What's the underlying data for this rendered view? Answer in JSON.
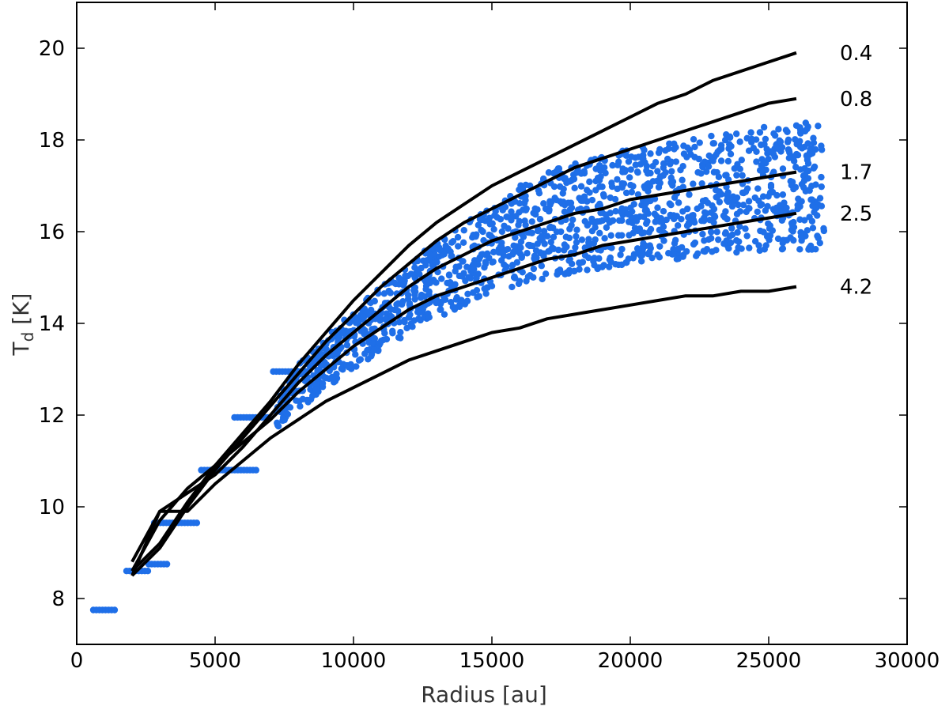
{
  "chart_data": {
    "type": "scatter",
    "xlabel": "Radius [au]",
    "ylabel_main": "T",
    "ylabel_sub": "d",
    "ylabel_unit": " [K]",
    "xlim": [
      0,
      30000
    ],
    "ylim": [
      7,
      21
    ],
    "xticks": [
      0,
      5000,
      10000,
      15000,
      20000,
      25000,
      30000
    ],
    "yticks": [
      8,
      10,
      12,
      14,
      16,
      18,
      20
    ],
    "grid": false,
    "scatter_color": "#1f6fe8",
    "curve_color": "#000000",
    "scatter_bands": [
      [
        [
          600,
          7.75
        ],
        [
          1400,
          7.75
        ],
        [
          1800,
          8.6
        ],
        [
          2600,
          8.6
        ],
        [
          2600,
          8.75
        ],
        [
          3300,
          8.75
        ],
        [
          2800,
          9.65
        ],
        [
          4400,
          9.65
        ],
        [
          4500,
          10.8
        ],
        [
          6500,
          10.8
        ],
        [
          5700,
          11.95
        ],
        [
          7000,
          11.95
        ],
        [
          7100,
          12.95
        ],
        [
          8300,
          12.95
        ]
      ],
      [
        [
          2000,
          8.6
        ],
        [
          3000,
          9.2
        ],
        [
          4000,
          10.1
        ],
        [
          5000,
          10.9
        ],
        [
          6000,
          11.7
        ],
        [
          7000,
          12.4
        ],
        [
          8000,
          13.1
        ],
        [
          9000,
          13.7
        ],
        [
          10000,
          14.3
        ],
        [
          11000,
          14.8
        ],
        [
          12000,
          15.3
        ],
        [
          13000,
          15.8
        ],
        [
          14000,
          16.2
        ],
        [
          15000,
          16.6
        ],
        [
          16000,
          17.0
        ],
        [
          17000,
          17.3
        ],
        [
          18000,
          17.5
        ],
        [
          19000,
          17.7
        ],
        [
          20000,
          17.8
        ],
        [
          21000,
          17.9
        ],
        [
          22000,
          18.0
        ],
        [
          23000,
          18.1
        ],
        [
          24000,
          18.2
        ],
        [
          25000,
          18.3
        ],
        [
          26000,
          18.4
        ],
        [
          27000,
          18.4
        ]
      ],
      [
        [
          7000,
          11.6
        ],
        [
          8000,
          12.1
        ],
        [
          9000,
          12.6
        ],
        [
          10000,
          13.0
        ],
        [
          11000,
          13.4
        ],
        [
          12000,
          13.8
        ],
        [
          13000,
          14.1
        ],
        [
          14000,
          14.4
        ],
        [
          15000,
          14.6
        ],
        [
          16000,
          14.8
        ],
        [
          17000,
          15.0
        ],
        [
          18000,
          15.1
        ],
        [
          19000,
          15.2
        ],
        [
          20000,
          15.3
        ],
        [
          21000,
          15.4
        ],
        [
          22000,
          15.4
        ],
        [
          23000,
          15.5
        ],
        [
          24000,
          15.5
        ],
        [
          25000,
          15.6
        ],
        [
          26000,
          15.6
        ],
        [
          27000,
          15.6
        ]
      ]
    ],
    "series": [
      {
        "label": "0.4",
        "x": [
          2000,
          3000,
          4000,
          5000,
          6000,
          7000,
          8000,
          9000,
          10000,
          11000,
          12000,
          13000,
          14000,
          15000,
          16000,
          17000,
          18000,
          19000,
          20000,
          21000,
          22000,
          23000,
          24000,
          25000,
          26000
        ],
        "y": [
          8.6,
          9.2,
          10.1,
          10.9,
          11.6,
          12.3,
          13.1,
          13.8,
          14.5,
          15.1,
          15.7,
          16.2,
          16.6,
          17.0,
          17.3,
          17.6,
          17.9,
          18.2,
          18.5,
          18.8,
          19.0,
          19.3,
          19.5,
          19.7,
          19.9
        ]
      },
      {
        "label": "0.8",
        "x": [
          2000,
          3000,
          4000,
          5000,
          6000,
          7000,
          8000,
          9000,
          10000,
          11000,
          12000,
          13000,
          14000,
          15000,
          16000,
          17000,
          18000,
          19000,
          20000,
          21000,
          22000,
          23000,
          24000,
          25000,
          26000
        ],
        "y": [
          8.5,
          9.1,
          10.0,
          10.8,
          11.5,
          12.2,
          12.9,
          13.6,
          14.2,
          14.8,
          15.3,
          15.8,
          16.2,
          16.5,
          16.8,
          17.1,
          17.4,
          17.6,
          17.8,
          18.0,
          18.2,
          18.4,
          18.6,
          18.8,
          18.9
        ]
      },
      {
        "label": "1.7",
        "x": [
          2000,
          3000,
          4000,
          5000,
          6000,
          7000,
          8000,
          9000,
          10000,
          11000,
          12000,
          13000,
          14000,
          15000,
          16000,
          17000,
          18000,
          19000,
          20000,
          21000,
          22000,
          23000,
          24000,
          25000,
          26000
        ],
        "y": [
          8.5,
          9.9,
          10.3,
          10.7,
          11.3,
          12.0,
          12.7,
          13.3,
          13.8,
          14.3,
          14.8,
          15.2,
          15.5,
          15.8,
          16.0,
          16.2,
          16.4,
          16.5,
          16.7,
          16.8,
          16.9,
          17.0,
          17.1,
          17.2,
          17.3
        ]
      },
      {
        "label": "2.5",
        "x": [
          2000,
          3000,
          4000,
          5000,
          6000,
          7000,
          8000,
          9000,
          10000,
          11000,
          12000,
          13000,
          14000,
          15000,
          16000,
          17000,
          18000,
          19000,
          20000,
          21000,
          22000,
          23000,
          24000,
          25000,
          26000
        ],
        "y": [
          8.6,
          9.7,
          10.4,
          10.9,
          11.4,
          11.9,
          12.5,
          13.0,
          13.5,
          13.9,
          14.3,
          14.6,
          14.8,
          15.0,
          15.2,
          15.4,
          15.5,
          15.7,
          15.8,
          15.9,
          16.0,
          16.1,
          16.2,
          16.3,
          16.4
        ]
      },
      {
        "label": "4.2",
        "x": [
          2000,
          3000,
          4000,
          5000,
          6000,
          7000,
          8000,
          9000,
          10000,
          11000,
          12000,
          13000,
          14000,
          15000,
          16000,
          17000,
          18000,
          19000,
          20000,
          21000,
          22000,
          23000,
          24000,
          25000,
          26000
        ],
        "y": [
          8.8,
          9.9,
          9.9,
          10.5,
          11.0,
          11.5,
          11.9,
          12.3,
          12.6,
          12.9,
          13.2,
          13.4,
          13.6,
          13.8,
          13.9,
          14.1,
          14.2,
          14.3,
          14.4,
          14.5,
          14.6,
          14.6,
          14.7,
          14.7,
          14.8
        ]
      }
    ]
  }
}
